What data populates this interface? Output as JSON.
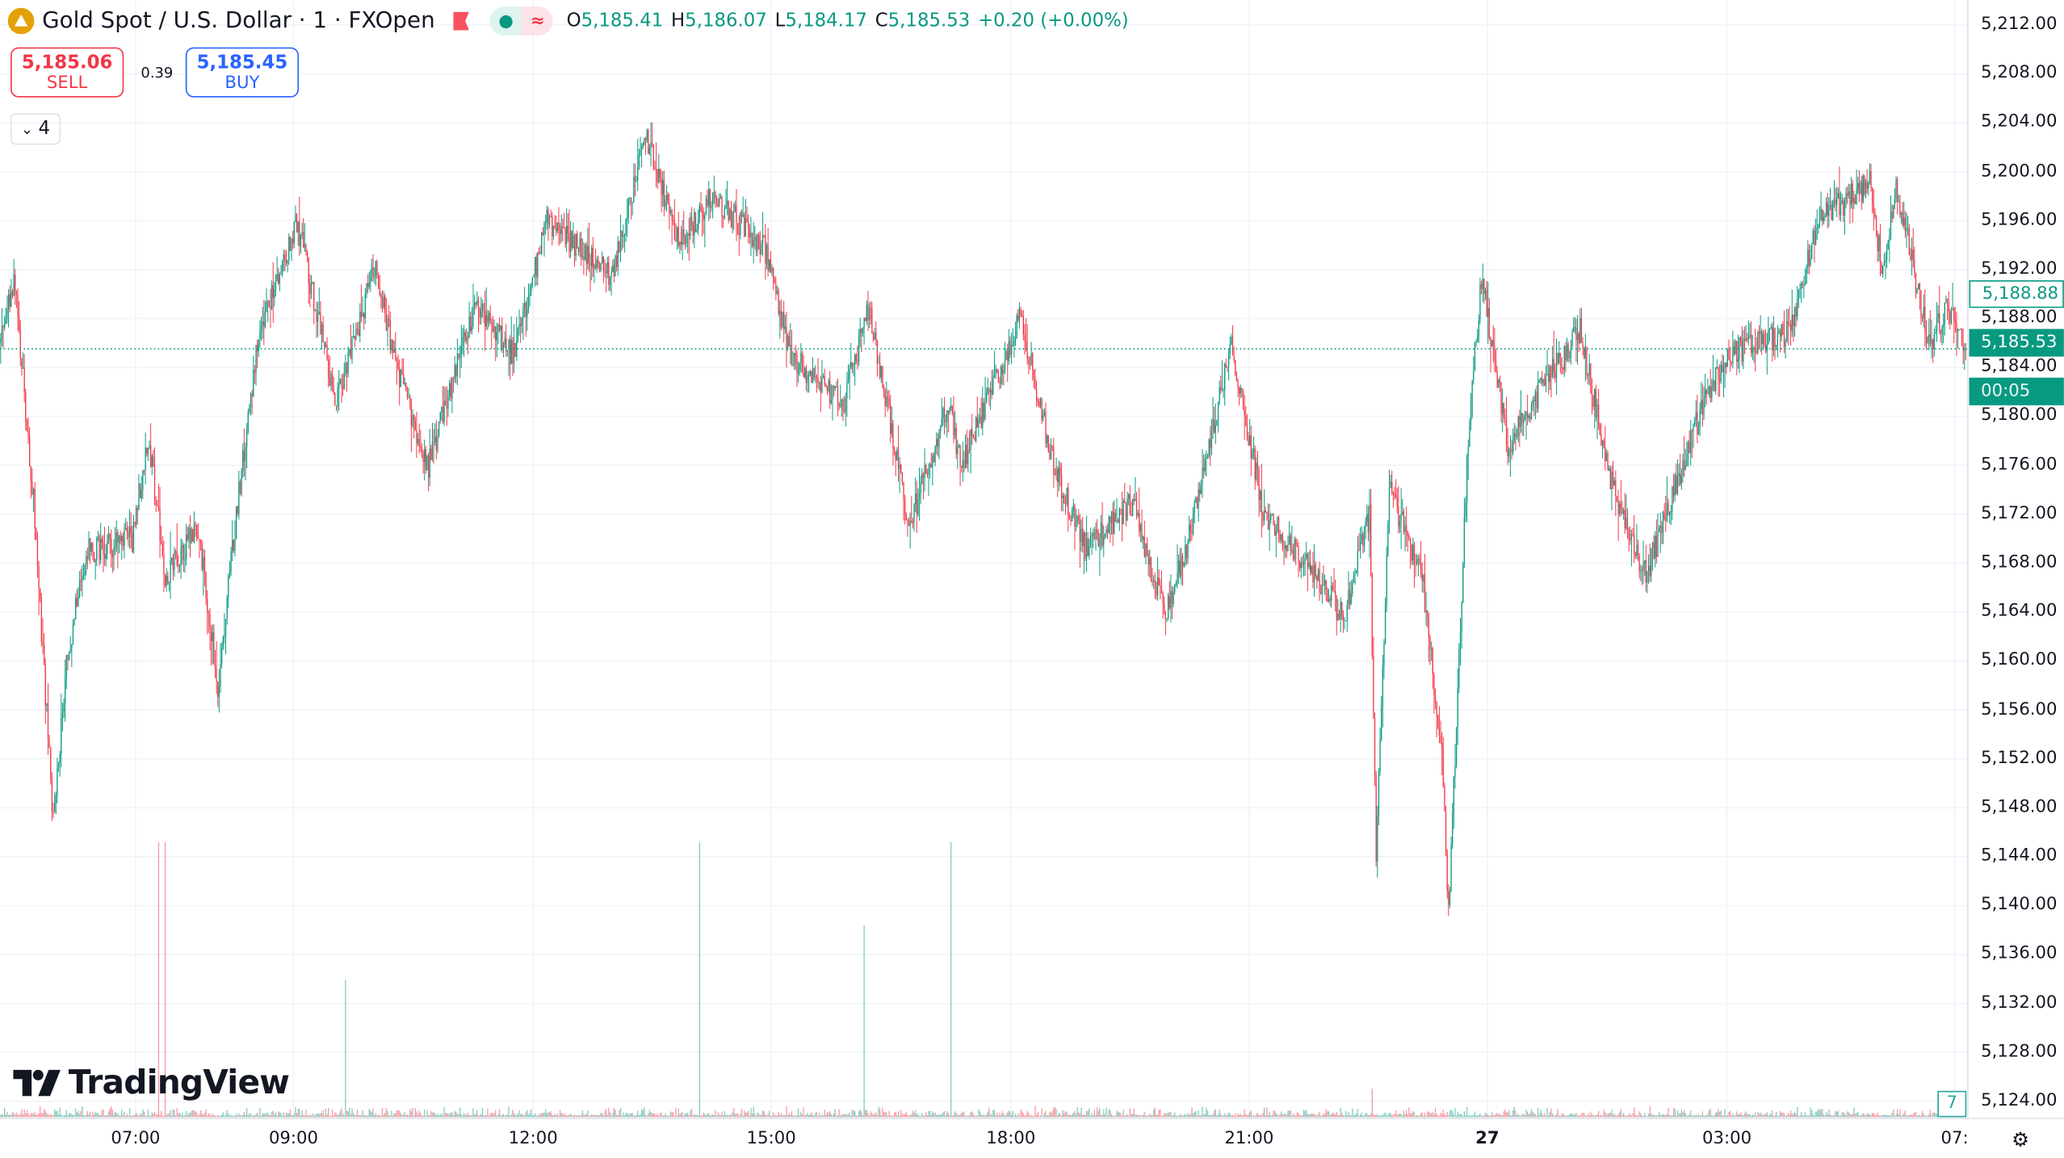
{
  "header": {
    "symbol_title": "Gold Spot / U.S. Dollar · 1 · FXOpen",
    "market_status_icon": "dot-icon",
    "data_mode_icon": "approx-icon",
    "ohlc": {
      "o_label": "O",
      "o": "5,185.41",
      "h_label": "H",
      "h": "5,186.07",
      "l_label": "L",
      "l": "5,184.17",
      "c_label": "C",
      "c": "5,185.53",
      "change": "+0.20 (+0.00%)"
    }
  },
  "trade": {
    "sell_price": "5,185.06",
    "sell_label": "SELL",
    "spread": "0.39",
    "buy_price": "5,185.45",
    "buy_label": "BUY"
  },
  "indicators_toggle": {
    "count": "4"
  },
  "logo": "TradingView",
  "price_axis": {
    "labels": [
      "5,212.00",
      "5,208.00",
      "5,204.00",
      "5,200.00",
      "5,196.00",
      "5,192.00",
      "5,188.00",
      "5,184.00",
      "5,180.00",
      "5,176.00",
      "5,172.00",
      "5,168.00",
      "5,164.00",
      "5,160.00",
      "5,156.00",
      "5,152.00",
      "5,148.00",
      "5,144.00",
      "5,140.00",
      "5,136.00",
      "5,132.00",
      "5,128.00",
      "5,124.00"
    ],
    "high_tag": "5,188.88",
    "last_price": "5,185.53",
    "countdown": "00:05",
    "volume_tag": "7"
  },
  "time_axis": {
    "labels": [
      {
        "t": "07:00",
        "m": 103
      },
      {
        "t": "09:00",
        "m": 223
      },
      {
        "t": "12:00",
        "m": 405
      },
      {
        "t": "15:00",
        "m": 586
      },
      {
        "t": "18:00",
        "m": 768
      },
      {
        "t": "21:00",
        "m": 949
      },
      {
        "t": "27",
        "m": 1130,
        "bold": true
      },
      {
        "t": "03:00",
        "m": 1312
      },
      {
        "t": "07:",
        "m": 1485
      }
    ]
  },
  "colors": {
    "up": "#089981",
    "down": "#f23645",
    "buy": "#2962ff",
    "grid": "#f0f3fa"
  },
  "chart_data": {
    "type": "candlestick",
    "symbol": "XAUUSD",
    "interval_minutes": 1,
    "ylim": [
      5122,
      5214
    ],
    "last_price": 5185.53,
    "price_path": [
      [
        0,
        5186
      ],
      [
        10,
        5191.5
      ],
      [
        25,
        5173
      ],
      [
        40,
        5147
      ],
      [
        50,
        5160
      ],
      [
        65,
        5169
      ],
      [
        100,
        5170
      ],
      [
        112,
        5178.5
      ],
      [
        125,
        5167
      ],
      [
        150,
        5171
      ],
      [
        165,
        5158
      ],
      [
        180,
        5173
      ],
      [
        195,
        5186
      ],
      [
        225,
        5196
      ],
      [
        255,
        5181
      ],
      [
        285,
        5192.5
      ],
      [
        300,
        5184
      ],
      [
        325,
        5176
      ],
      [
        360,
        5189
      ],
      [
        390,
        5185
      ],
      [
        415,
        5196
      ],
      [
        465,
        5191.5
      ],
      [
        490,
        5203
      ],
      [
        515,
        5194
      ],
      [
        540,
        5198
      ],
      [
        580,
        5194
      ],
      [
        600,
        5185
      ],
      [
        640,
        5181
      ],
      [
        660,
        5189
      ],
      [
        690,
        5171
      ],
      [
        720,
        5181
      ],
      [
        730,
        5176
      ],
      [
        775,
        5188
      ],
      [
        800,
        5176
      ],
      [
        825,
        5169
      ],
      [
        860,
        5173
      ],
      [
        885,
        5163.5
      ],
      [
        905,
        5171
      ],
      [
        935,
        5186
      ],
      [
        960,
        5172
      ],
      [
        1000,
        5167
      ],
      [
        1020,
        5163.5
      ],
      [
        1040,
        5172
      ],
      [
        1045,
        5144
      ],
      [
        1055,
        5174
      ],
      [
        1080,
        5167
      ],
      [
        1095,
        5152
      ],
      [
        1100,
        5139
      ],
      [
        1115,
        5178.5
      ],
      [
        1125,
        5191.5
      ],
      [
        1145,
        5177.5
      ],
      [
        1175,
        5183
      ],
      [
        1200,
        5187
      ],
      [
        1225,
        5174
      ],
      [
        1250,
        5167
      ],
      [
        1285,
        5178.5
      ],
      [
        1310,
        5185
      ],
      [
        1360,
        5187
      ],
      [
        1380,
        5196
      ],
      [
        1420,
        5199
      ],
      [
        1430,
        5191.5
      ],
      [
        1440,
        5199
      ],
      [
        1465,
        5186
      ],
      [
        1480,
        5189
      ],
      [
        1493,
        5185.53
      ]
    ],
    "volume_spikes": [
      [
        120,
        212
      ],
      [
        125,
        212
      ],
      [
        262,
        106
      ],
      [
        531,
        212
      ],
      [
        656,
        148
      ],
      [
        722,
        212
      ],
      [
        1042,
        22
      ]
    ],
    "volume_max": 215
  }
}
